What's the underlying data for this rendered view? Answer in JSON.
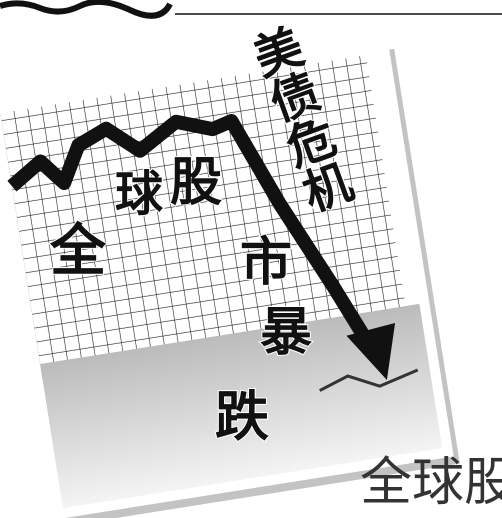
{
  "headline": {
    "vertical": "美债危机",
    "chars": [
      "全",
      "球",
      "股",
      "市",
      "暴",
      "跌"
    ]
  },
  "caption": "全球股"
}
